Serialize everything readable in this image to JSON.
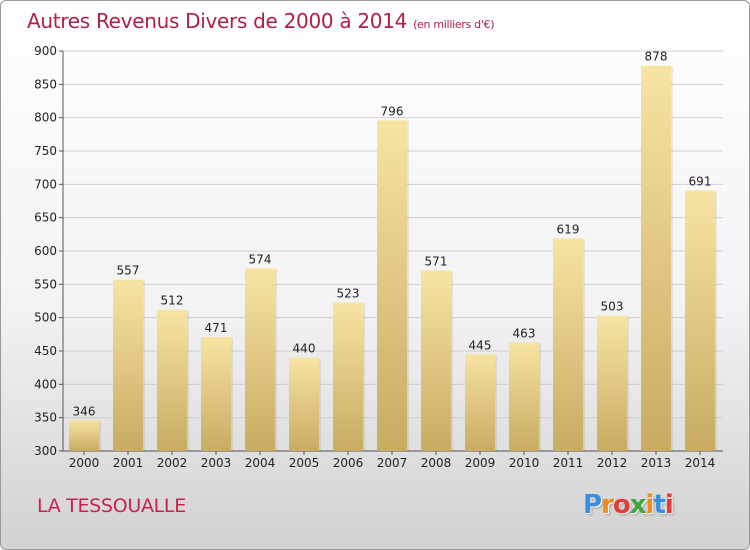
{
  "title": "Autres Revenus Divers de 2000 à 2014",
  "unit": "(en milliers d'€)",
  "location": "LA TESSOUALLE",
  "logo": {
    "text": "Proxiti",
    "letter_colors": [
      "#3a8de0",
      "#f08a1c",
      "#e33a3a",
      "#3fa63f",
      "#f08a1c",
      "#3a8de0",
      "#e33a3a"
    ]
  },
  "colors": {
    "title": "#b02045",
    "bar_light": "#f7e4a3",
    "bar_dark": "#c9ab62",
    "grid": "#d0d0d0"
  },
  "chart_data": {
    "type": "bar",
    "title": "Autres Revenus Divers de 2000 à 2014",
    "categories": [
      "2000",
      "2001",
      "2002",
      "2003",
      "2004",
      "2005",
      "2006",
      "2007",
      "2008",
      "2009",
      "2010",
      "2011",
      "2012",
      "2013",
      "2014"
    ],
    "values": [
      346,
      557,
      512,
      471,
      574,
      440,
      523,
      796,
      571,
      445,
      463,
      619,
      503,
      878,
      691
    ],
    "ylim": [
      300,
      900
    ],
    "yticks": [
      300,
      350,
      400,
      450,
      500,
      550,
      600,
      650,
      700,
      750,
      800,
      850,
      900
    ],
    "grid": true
  }
}
